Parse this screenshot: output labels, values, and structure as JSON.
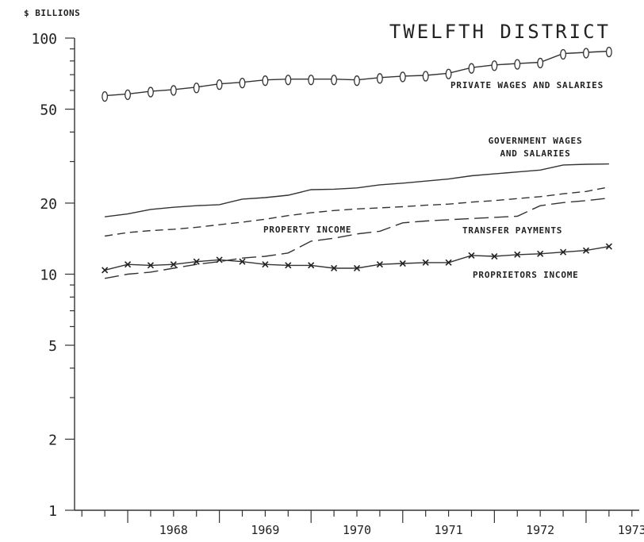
{
  "chart_data": {
    "type": "line",
    "title": "TWELFTH DISTRICT",
    "ylabel": "$ BILLIONS",
    "xlabel": "",
    "yscale": "log",
    "ylim": [
      1,
      100
    ],
    "xlim": [
      1967.42,
      1973.58
    ],
    "yticks_major": [
      1,
      2,
      5,
      10,
      20,
      50,
      100
    ],
    "yticks_minor": [
      3,
      4,
      6,
      7,
      8,
      9,
      30,
      40,
      60,
      70,
      80,
      90
    ],
    "xtick_labels": [
      "1968",
      "1969",
      "1970",
      "1971",
      "1972",
      "1973"
    ],
    "grid": false,
    "x": [
      1967.75,
      1968.0,
      1968.25,
      1968.5,
      1968.75,
      1969.0,
      1969.25,
      1969.5,
      1969.75,
      1970.0,
      1970.25,
      1970.5,
      1970.75,
      1971.0,
      1971.25,
      1971.5,
      1971.75,
      1972.0,
      1972.25,
      1972.5,
      1972.75,
      1973.0,
      1973.25
    ],
    "series": [
      {
        "name": "PRIVATE WAGES AND SALARIES",
        "style": "solid",
        "marker": "circle",
        "values": [
          57,
          58,
          59.5,
          60.5,
          62,
          64,
          65,
          66.5,
          67,
          67,
          67,
          66.5,
          68,
          69,
          69.5,
          71,
          75,
          77,
          78,
          79,
          86,
          87,
          88
        ]
      },
      {
        "name": "GOVERNMENT WAGES AND SALARIES",
        "style": "solid",
        "marker": "none",
        "values": [
          17.5,
          18,
          18.8,
          19.2,
          19.5,
          19.7,
          20.8,
          21.1,
          21.6,
          22.8,
          22.9,
          23.2,
          23.9,
          24.3,
          24.8,
          25.3,
          26.1,
          26.6,
          27.1,
          27.6,
          29,
          29.2,
          29.3
        ]
      },
      {
        "name": "PROPERTY INCOME",
        "style": "dashed",
        "marker": "none",
        "values": [
          14.5,
          15,
          15.3,
          15.5,
          15.8,
          16.2,
          16.6,
          17.1,
          17.7,
          18.2,
          18.6,
          18.9,
          19.1,
          19.3,
          19.6,
          19.8,
          20.2,
          20.5,
          20.9,
          21.3,
          21.9,
          22.4,
          23.4
        ]
      },
      {
        "name": "TRANSFER PAYMENTS",
        "style": "long-dash",
        "marker": "none",
        "values": [
          9.6,
          10,
          10.2,
          10.6,
          11,
          11.3,
          11.7,
          11.9,
          12.3,
          13.8,
          14.2,
          14.8,
          15.2,
          16.5,
          16.8,
          17,
          17.2,
          17.4,
          17.6,
          19.5,
          20.1,
          20.5,
          21
        ]
      },
      {
        "name": "PROPRIETORS INCOME",
        "style": "solid",
        "marker": "x",
        "values": [
          10.4,
          11,
          10.9,
          11,
          11.3,
          11.5,
          11.3,
          11,
          10.9,
          10.9,
          10.6,
          10.6,
          11,
          11.1,
          11.2,
          11.2,
          12,
          11.9,
          12.1,
          12.2,
          12.4,
          12.6,
          13.1
        ]
      }
    ],
    "annotations": {
      "private": [
        "PRIVATE WAGES AND SALARIES"
      ],
      "government": [
        "GOVERNMENT WAGES",
        "AND SALARIES"
      ],
      "property": [
        "PROPERTY INCOME"
      ],
      "transfer": [
        "TRANSFER PAYMENTS"
      ],
      "proprietors": [
        "PROPRIETORS INCOME"
      ]
    }
  }
}
